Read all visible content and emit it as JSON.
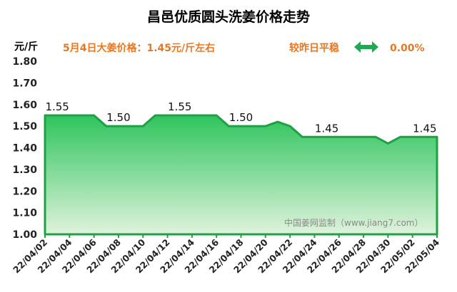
{
  "header": {
    "title": "昌邑优质圆头洗姜价格走势",
    "unit": "元/斤",
    "price_note": "5月4日大姜价格：1.45元/斤左右",
    "compare_label": "较昨日平稳",
    "compare_value": "0.00%",
    "watermark": "中国姜网监制（www.jiang7.com）"
  },
  "colors": {
    "accent_text": "#e87722",
    "arrow": "#1daa52",
    "line": "#1ea043",
    "fill_top": "#2fc45d",
    "fill_bottom": "#dff3dc"
  },
  "icons": {
    "compare": "double-arrow-icon"
  },
  "chart_data": {
    "type": "area",
    "title": "昌邑优质圆头洗姜价格走势",
    "xlabel": "",
    "ylabel": "元/斤",
    "ylim": [
      1.0,
      1.8
    ],
    "yticks": [
      "1.00",
      "1.10",
      "1.20",
      "1.30",
      "1.40",
      "1.50",
      "1.60",
      "1.70",
      "1.80"
    ],
    "grid": false,
    "x_ticks": [
      "22/04/02",
      "22/04/04",
      "22/04/06",
      "22/04/08",
      "22/04/10",
      "22/04/12",
      "22/04/14",
      "22/04/16",
      "22/04/18",
      "22/04/20",
      "22/04/22",
      "22/04/24",
      "22/04/26",
      "22/04/28",
      "22/04/30",
      "22/05/02",
      "22/05/04"
    ],
    "x": [
      "2022-04-02",
      "2022-04-03",
      "2022-04-04",
      "2022-04-05",
      "2022-04-06",
      "2022-04-07",
      "2022-04-08",
      "2022-04-09",
      "2022-04-10",
      "2022-04-11",
      "2022-04-12",
      "2022-04-13",
      "2022-04-14",
      "2022-04-15",
      "2022-04-16",
      "2022-04-17",
      "2022-04-18",
      "2022-04-19",
      "2022-04-20",
      "2022-04-21",
      "2022-04-22",
      "2022-04-23",
      "2022-04-24",
      "2022-04-25",
      "2022-04-26",
      "2022-04-27",
      "2022-04-28",
      "2022-04-29",
      "2022-04-30",
      "2022-05-01",
      "2022-05-02",
      "2022-05-03",
      "2022-05-04"
    ],
    "series": [
      {
        "values": [
          1.55,
          1.55,
          1.55,
          1.55,
          1.55,
          1.5,
          1.5,
          1.5,
          1.5,
          1.55,
          1.55,
          1.55,
          1.55,
          1.55,
          1.55,
          1.5,
          1.5,
          1.5,
          1.5,
          1.52,
          1.5,
          1.45,
          1.45,
          1.45,
          1.45,
          1.45,
          1.45,
          1.45,
          1.42,
          1.45,
          1.45,
          1.45,
          1.45
        ]
      }
    ],
    "data_labels": [
      {
        "x": "2022-04-03",
        "text": "1.55"
      },
      {
        "x": "2022-04-08",
        "text": "1.50"
      },
      {
        "x": "2022-04-13",
        "text": "1.55"
      },
      {
        "x": "2022-04-18",
        "text": "1.50"
      },
      {
        "x": "2022-04-25",
        "text": "1.45"
      },
      {
        "x": "2022-05-03",
        "text": "1.45"
      }
    ]
  }
}
